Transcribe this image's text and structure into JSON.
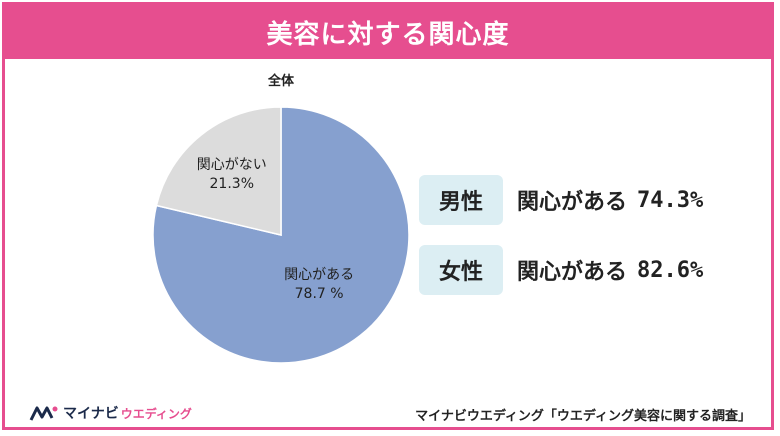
{
  "header": {
    "title": "美容に対する関心度"
  },
  "chart_data": {
    "type": "pie",
    "title": "全体",
    "slices": [
      {
        "label": "関心がある",
        "value": 78.7,
        "value_label": "78.7 %",
        "color": "#86a0cf"
      },
      {
        "label": "関心がない",
        "value": 21.3,
        "value_label": "21.3%",
        "color": "#dcdcdc"
      }
    ]
  },
  "breakdown": [
    {
      "group": "男性",
      "label": "関心がある",
      "value": "74.3%"
    },
    {
      "group": "女性",
      "label": "関心がある",
      "value": "82.6%"
    }
  ],
  "footer": {
    "brand": "マイナビ",
    "brand_sub": "ウエディング",
    "source": "マイナビウエディング「ウエディング美容に関する調査」"
  }
}
